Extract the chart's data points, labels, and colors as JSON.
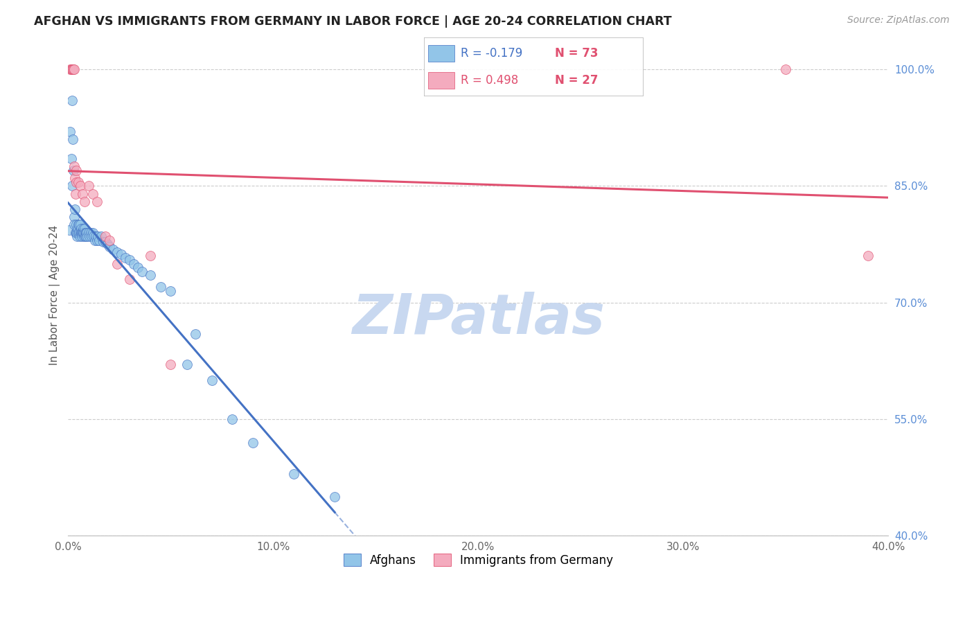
{
  "title": "AFGHAN VS IMMIGRANTS FROM GERMANY IN LABOR FORCE | AGE 20-24 CORRELATION CHART",
  "source": "Source: ZipAtlas.com",
  "ylabel": "In Labor Force | Age 20-24",
  "xlim": [
    0.0,
    0.4
  ],
  "ylim": [
    0.4,
    1.02
  ],
  "xticks": [
    0.0,
    0.1,
    0.2,
    0.3,
    0.4
  ],
  "yticks_right": [
    1.0,
    0.85,
    0.7,
    0.55,
    0.4
  ],
  "ytick_labels_right": [
    "100.0%",
    "85.0%",
    "70.0%",
    "55.0%",
    "40.0%"
  ],
  "xtick_labels": [
    "0.0%",
    "10.0%",
    "20.0%",
    "30.0%",
    "40.0%"
  ],
  "afghan_color": "#92C5E8",
  "german_color": "#F4ABBE",
  "regression_blue": "#4472C4",
  "regression_pink": "#E05070",
  "R_afghan": -0.179,
  "N_afghan": 73,
  "R_german": 0.498,
  "N_german": 27,
  "legend_label_afghan": "Afghans",
  "legend_label_german": "Immigrants from Germany",
  "watermark": "ZIPatlas",
  "watermark_color": "#C8D8F0",
  "afghan_x": [
    0.0005,
    0.001,
    0.0015,
    0.0018,
    0.002,
    0.0022,
    0.0025,
    0.0028,
    0.003,
    0.0032,
    0.0035,
    0.0038,
    0.004,
    0.0042,
    0.0044,
    0.0046,
    0.0048,
    0.005,
    0.0052,
    0.0054,
    0.0056,
    0.0058,
    0.006,
    0.0062,
    0.0064,
    0.0066,
    0.0068,
    0.007,
    0.0072,
    0.0074,
    0.0076,
    0.0078,
    0.008,
    0.0082,
    0.0084,
    0.0086,
    0.0088,
    0.009,
    0.0095,
    0.01,
    0.0105,
    0.011,
    0.0115,
    0.012,
    0.0125,
    0.013,
    0.0135,
    0.014,
    0.0145,
    0.015,
    0.016,
    0.017,
    0.018,
    0.019,
    0.02,
    0.022,
    0.024,
    0.026,
    0.028,
    0.03,
    0.032,
    0.034,
    0.036,
    0.04,
    0.045,
    0.05,
    0.058,
    0.062,
    0.07,
    0.08,
    0.09,
    0.11,
    0.13
  ],
  "afghan_y": [
    0.793,
    0.92,
    0.885,
    0.96,
    0.85,
    0.91,
    0.87,
    0.81,
    0.8,
    0.82,
    0.79,
    0.8,
    0.79,
    0.785,
    0.79,
    0.795,
    0.8,
    0.79,
    0.8,
    0.79,
    0.785,
    0.79,
    0.8,
    0.795,
    0.79,
    0.79,
    0.785,
    0.79,
    0.795,
    0.79,
    0.785,
    0.79,
    0.795,
    0.79,
    0.785,
    0.79,
    0.785,
    0.79,
    0.785,
    0.79,
    0.785,
    0.79,
    0.785,
    0.79,
    0.785,
    0.78,
    0.785,
    0.78,
    0.785,
    0.78,
    0.785,
    0.778,
    0.778,
    0.775,
    0.772,
    0.768,
    0.765,
    0.762,
    0.758,
    0.755,
    0.75,
    0.745,
    0.74,
    0.735,
    0.72,
    0.715,
    0.62,
    0.66,
    0.6,
    0.55,
    0.52,
    0.48,
    0.45
  ],
  "german_x": [
    0.001,
    0.0015,
    0.0018,
    0.002,
    0.0022,
    0.0025,
    0.0028,
    0.003,
    0.0032,
    0.0035,
    0.0038,
    0.004,
    0.005,
    0.006,
    0.007,
    0.008,
    0.01,
    0.012,
    0.014,
    0.018,
    0.02,
    0.024,
    0.03,
    0.04,
    0.05,
    0.35,
    0.39
  ],
  "german_y": [
    1.0,
    1.0,
    1.0,
    1.0,
    1.0,
    1.0,
    1.0,
    0.875,
    0.86,
    0.84,
    0.87,
    0.855,
    0.855,
    0.85,
    0.84,
    0.83,
    0.85,
    0.84,
    0.83,
    0.785,
    0.78,
    0.75,
    0.73,
    0.76,
    0.62,
    1.0,
    0.76
  ],
  "bg_color": "#FFFFFF",
  "grid_color": "#CCCCCC"
}
